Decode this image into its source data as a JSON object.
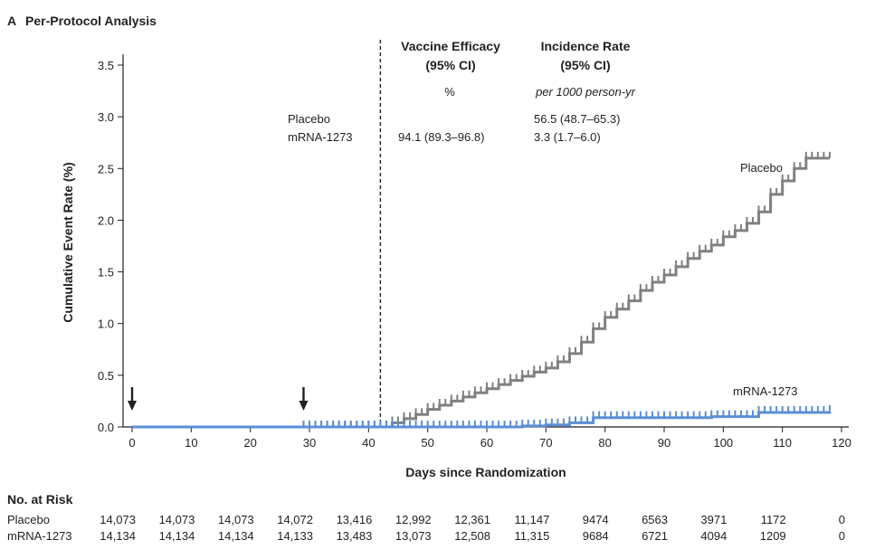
{
  "panel": {
    "letter": "A",
    "title": "Per-Protocol Analysis"
  },
  "chart_data": {
    "type": "line",
    "xlabel": "Days since Randomization",
    "ylabel": "Cumulative Event Rate (%)",
    "xlim": [
      0,
      120
    ],
    "ylim": [
      0,
      3.5
    ],
    "x_ticks": [
      0,
      10,
      20,
      30,
      40,
      50,
      60,
      70,
      80,
      90,
      100,
      110,
      120
    ],
    "y_ticks": [
      0.0,
      0.5,
      1.0,
      1.5,
      2.0,
      2.5,
      3.0,
      3.5
    ],
    "y_tick_labels": [
      "0.0",
      "0.5",
      "1.0",
      "1.5",
      "2.0",
      "2.5",
      "3.0",
      "3.5"
    ],
    "dashed_vertical_line_x": 42,
    "arrows_x": [
      0,
      29
    ],
    "grid": false,
    "series": [
      {
        "name": "Placebo",
        "color": "#808080",
        "x": [
          0,
          42,
          44,
          46,
          48,
          50,
          52,
          54,
          56,
          58,
          60,
          62,
          64,
          66,
          68,
          70,
          72,
          74,
          76,
          78,
          80,
          82,
          84,
          86,
          88,
          90,
          92,
          94,
          96,
          98,
          100,
          102,
          104,
          106,
          108,
          110,
          112,
          114,
          118
        ],
        "y": [
          0,
          0,
          0.04,
          0.08,
          0.12,
          0.17,
          0.21,
          0.25,
          0.29,
          0.33,
          0.37,
          0.41,
          0.45,
          0.49,
          0.53,
          0.57,
          0.63,
          0.71,
          0.82,
          0.95,
          1.06,
          1.14,
          1.22,
          1.32,
          1.4,
          1.47,
          1.55,
          1.63,
          1.7,
          1.76,
          1.84,
          1.9,
          1.97,
          2.08,
          2.25,
          2.38,
          2.5,
          2.6,
          2.6
        ]
      },
      {
        "name": "mRNA-1273",
        "color": "#5b8fd4",
        "x": [
          0,
          62,
          66,
          70,
          74,
          78,
          98,
          106,
          118
        ],
        "y": [
          0,
          0,
          0.01,
          0.02,
          0.04,
          0.09,
          0.1,
          0.14,
          0.15
        ]
      }
    ],
    "curve_labels": [
      {
        "text": "Placebo",
        "series": "Placebo"
      },
      {
        "text": "mRNA-1273",
        "series": "mRNA-1273"
      }
    ],
    "table": {
      "headers": {
        "efficacy": [
          "Vaccine Efficacy",
          "(95% CI)"
        ],
        "incidence": [
          "Incidence Rate",
          "(95% CI)"
        ]
      },
      "units": {
        "efficacy": "%",
        "incidence": "per 1000 person-yr"
      },
      "rows": [
        {
          "label": "Placebo",
          "efficacy": "",
          "incidence": "56.5 (48.7–65.3)"
        },
        {
          "label": "mRNA-1273",
          "efficacy": "94.1 (89.3–96.8)",
          "incidence": "3.3 (1.7–6.0)"
        }
      ]
    }
  },
  "at_risk": {
    "title": "No. at Risk",
    "rows": [
      {
        "label": "Placebo",
        "values": [
          "14,073",
          "14,073",
          "14,073",
          "14,072",
          "13,416",
          "12,992",
          "12,361",
          "11,147",
          "9474",
          "6563",
          "3971",
          "1172",
          "0"
        ]
      },
      {
        "label": "mRNA-1273",
        "values": [
          "14,134",
          "14,134",
          "14,134",
          "14,133",
          "13,483",
          "13,073",
          "12,508",
          "11,315",
          "9684",
          "6721",
          "4094",
          "1209",
          "0"
        ]
      }
    ]
  }
}
